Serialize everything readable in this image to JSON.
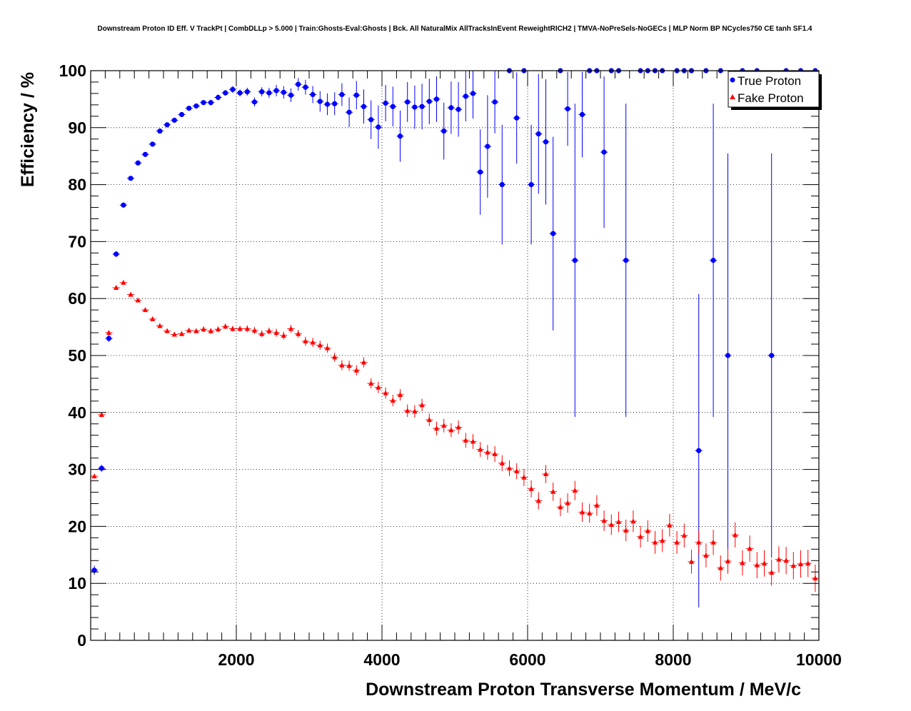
{
  "chart_data": {
    "type": "scatter",
    "title": "Downstream Proton ID Eff. V TrackPt | CombDLLp > 5.000 | Train:Ghosts-Eval:Ghosts | Bck. All NaturalMix AllTracksInEvent ReweightRICH2 | TMVA-NoPreSels-NoGECs | MLP Norm BP NCycles750 CE tanh SF1.4",
    "xlabel": "Downstream Proton Transverse Momentum / MeV/c",
    "ylabel": "Efficiency / %",
    "xlim": [
      0,
      10000
    ],
    "ylim": [
      0,
      100
    ],
    "xticks": [
      2000,
      4000,
      6000,
      8000,
      10000
    ],
    "yticks": [
      0,
      10,
      20,
      30,
      40,
      50,
      60,
      70,
      80,
      90,
      100
    ],
    "grid": true,
    "legend_position": "top-right",
    "colors": {
      "true_proton": "#0000ff",
      "fake_proton": "#ff0000"
    },
    "series": [
      {
        "name": "True Proton",
        "marker": "circle",
        "color": "#0000ff",
        "points": [
          [
            50,
            12.3,
            0.8
          ],
          [
            150,
            30.2,
            0.6
          ],
          [
            250,
            53.0,
            0.6
          ],
          [
            350,
            67.8,
            0.5
          ],
          [
            450,
            76.4,
            0.4
          ],
          [
            550,
            81.1,
            0.4
          ],
          [
            650,
            83.8,
            0.4
          ],
          [
            750,
            85.3,
            0.4
          ],
          [
            850,
            87.1,
            0.4
          ],
          [
            950,
            89.4,
            0.4
          ],
          [
            1050,
            90.5,
            0.4
          ],
          [
            1150,
            91.3,
            0.4
          ],
          [
            1250,
            92.3,
            0.4
          ],
          [
            1350,
            93.4,
            0.4
          ],
          [
            1450,
            93.8,
            0.4
          ],
          [
            1550,
            94.4,
            0.4
          ],
          [
            1650,
            94.4,
            0.5
          ],
          [
            1750,
            95.3,
            0.5
          ],
          [
            1850,
            96.1,
            0.5
          ],
          [
            1950,
            96.7,
            0.6
          ],
          [
            2050,
            96.1,
            0.6
          ],
          [
            2150,
            96.3,
            0.7
          ],
          [
            2250,
            94.5,
            0.8
          ],
          [
            2350,
            96.3,
            0.8
          ],
          [
            2450,
            96.1,
            0.9
          ],
          [
            2550,
            96.5,
            1.0
          ],
          [
            2650,
            96.2,
            1.1
          ],
          [
            2750,
            95.7,
            1.2
          ],
          [
            2850,
            97.6,
            1.1
          ],
          [
            2950,
            97.1,
            1.3
          ],
          [
            3050,
            95.8,
            1.5
          ],
          [
            3150,
            94.6,
            1.8
          ],
          [
            3250,
            94.1,
            1.9
          ],
          [
            3350,
            94.2,
            2.0
          ],
          [
            3450,
            95.8,
            2.0
          ],
          [
            3550,
            92.7,
            2.6
          ],
          [
            3650,
            95.7,
            2.5
          ],
          [
            3750,
            93.7,
            3.0
          ],
          [
            3850,
            91.4,
            3.4
          ],
          [
            3950,
            90.1,
            3.8
          ],
          [
            4050,
            94.3,
            3.2
          ],
          [
            4150,
            93.7,
            3.5
          ],
          [
            4250,
            88.5,
            4.5
          ],
          [
            4350,
            94.5,
            3.5
          ],
          [
            4450,
            93.6,
            3.8
          ],
          [
            4550,
            93.7,
            4.0
          ],
          [
            4650,
            94.6,
            4.0
          ],
          [
            4750,
            95.0,
            4.0
          ],
          [
            4850,
            89.4,
            5.0
          ],
          [
            4950,
            93.5,
            4.6
          ],
          [
            5050,
            93.2,
            4.8
          ],
          [
            5150,
            95.5,
            4.4
          ],
          [
            5250,
            96.0,
            4.4
          ],
          [
            5350,
            82.2,
            7.5
          ],
          [
            5450,
            86.7,
            9.0
          ],
          [
            5550,
            94.5,
            5.5
          ],
          [
            5650,
            80.0,
            10.5
          ],
          [
            5750,
            100,
            0
          ],
          [
            5850,
            91.7,
            8.0
          ],
          [
            5950,
            100,
            0
          ],
          [
            6050,
            80.0,
            10.5
          ],
          [
            6150,
            88.9,
            10.5
          ],
          [
            6250,
            87.5,
            11.0
          ],
          [
            6350,
            71.4,
            17.0
          ],
          [
            6450,
            100,
            0
          ],
          [
            6550,
            93.3,
            6.5
          ],
          [
            6650,
            66.7,
            27.5
          ],
          [
            6750,
            92.3,
            7.5
          ],
          [
            6850,
            100,
            0
          ],
          [
            6950,
            100,
            0
          ],
          [
            7050,
            85.7,
            13.3
          ],
          [
            7150,
            100,
            0
          ],
          [
            7250,
            100,
            0
          ],
          [
            7350,
            66.7,
            27.5
          ],
          [
            7550,
            100,
            0
          ],
          [
            7650,
            100,
            0
          ],
          [
            7750,
            100,
            0
          ],
          [
            7850,
            100,
            0
          ],
          [
            8050,
            100,
            0
          ],
          [
            8150,
            100,
            0
          ],
          [
            8250,
            100,
            0
          ],
          [
            8350,
            33.3,
            27.5
          ],
          [
            8450,
            100,
            0
          ],
          [
            8550,
            66.7,
            27.5
          ],
          [
            8650,
            100,
            0
          ],
          [
            8750,
            50.0,
            35.5
          ],
          [
            8950,
            100,
            0
          ],
          [
            9150,
            100,
            0
          ],
          [
            9350,
            50.0,
            35.5
          ],
          [
            9550,
            100,
            0
          ],
          [
            9750,
            100,
            0
          ],
          [
            9950,
            100,
            0
          ]
        ]
      },
      {
        "name": "Fake Proton",
        "marker": "triangle",
        "color": "#ff0000",
        "points": [
          [
            50,
            28.8,
            0.3
          ],
          [
            150,
            39.6,
            0.3
          ],
          [
            250,
            54.0,
            0.3
          ],
          [
            350,
            61.9,
            0.3
          ],
          [
            450,
            62.8,
            0.3
          ],
          [
            550,
            60.7,
            0.3
          ],
          [
            650,
            59.7,
            0.3
          ],
          [
            750,
            58.0,
            0.3
          ],
          [
            850,
            56.4,
            0.3
          ],
          [
            950,
            55.2,
            0.4
          ],
          [
            1050,
            54.3,
            0.4
          ],
          [
            1150,
            53.7,
            0.4
          ],
          [
            1250,
            53.8,
            0.4
          ],
          [
            1350,
            54.4,
            0.4
          ],
          [
            1450,
            54.3,
            0.4
          ],
          [
            1550,
            54.6,
            0.5
          ],
          [
            1650,
            54.3,
            0.5
          ],
          [
            1750,
            54.6,
            0.5
          ],
          [
            1850,
            55.1,
            0.5
          ],
          [
            1950,
            54.7,
            0.5
          ],
          [
            2050,
            54.7,
            0.5
          ],
          [
            2150,
            54.7,
            0.6
          ],
          [
            2250,
            54.4,
            0.6
          ],
          [
            2350,
            53.8,
            0.6
          ],
          [
            2450,
            54.3,
            0.6
          ],
          [
            2550,
            54.0,
            0.7
          ],
          [
            2650,
            53.5,
            0.7
          ],
          [
            2750,
            54.7,
            0.7
          ],
          [
            2850,
            53.8,
            0.7
          ],
          [
            2950,
            52.5,
            0.8
          ],
          [
            3050,
            52.3,
            0.8
          ],
          [
            3150,
            51.8,
            0.8
          ],
          [
            3250,
            51.3,
            0.8
          ],
          [
            3350,
            49.7,
            0.8
          ],
          [
            3450,
            48.3,
            0.9
          ],
          [
            3550,
            48.2,
            0.9
          ],
          [
            3650,
            47.4,
            0.9
          ],
          [
            3750,
            48.8,
            0.9
          ],
          [
            3850,
            45.1,
            0.9
          ],
          [
            3950,
            44.4,
            1.0
          ],
          [
            4050,
            43.4,
            1.0
          ],
          [
            4150,
            42.1,
            1.0
          ],
          [
            4250,
            43.1,
            1.0
          ],
          [
            4350,
            40.3,
            1.1
          ],
          [
            4450,
            40.2,
            1.1
          ],
          [
            4550,
            41.3,
            1.1
          ],
          [
            4650,
            38.7,
            1.1
          ],
          [
            4750,
            37.2,
            1.2
          ],
          [
            4850,
            37.7,
            1.2
          ],
          [
            4950,
            36.9,
            1.2
          ],
          [
            5050,
            37.4,
            1.2
          ],
          [
            5150,
            35.1,
            1.3
          ],
          [
            5250,
            34.9,
            1.3
          ],
          [
            5350,
            33.5,
            1.3
          ],
          [
            5450,
            33.0,
            1.3
          ],
          [
            5550,
            32.7,
            1.4
          ],
          [
            5650,
            31.1,
            1.4
          ],
          [
            5750,
            30.2,
            1.4
          ],
          [
            5850,
            29.7,
            1.4
          ],
          [
            5950,
            28.6,
            1.5
          ],
          [
            6050,
            26.6,
            1.5
          ],
          [
            6150,
            24.5,
            1.5
          ],
          [
            6250,
            29.2,
            1.6
          ],
          [
            6350,
            26.1,
            1.6
          ],
          [
            6450,
            23.4,
            1.6
          ],
          [
            6550,
            24.1,
            1.7
          ],
          [
            6650,
            26.3,
            1.7
          ],
          [
            6750,
            22.5,
            1.7
          ],
          [
            6850,
            22.3,
            1.7
          ],
          [
            6950,
            23.7,
            1.8
          ],
          [
            7050,
            21.0,
            1.8
          ],
          [
            7150,
            20.3,
            1.8
          ],
          [
            7250,
            20.8,
            1.8
          ],
          [
            7350,
            19.3,
            1.9
          ],
          [
            7450,
            20.9,
            1.9
          ],
          [
            7550,
            18.2,
            1.9
          ],
          [
            7650,
            19.2,
            1.9
          ],
          [
            7750,
            17.2,
            2.0
          ],
          [
            7850,
            17.5,
            2.0
          ],
          [
            7950,
            20.2,
            2.0
          ],
          [
            8050,
            17.2,
            2.0
          ],
          [
            8150,
            18.4,
            2.1
          ],
          [
            8250,
            13.8,
            2.1
          ],
          [
            8350,
            17.2,
            2.1
          ],
          [
            8450,
            14.9,
            2.1
          ],
          [
            8550,
            17.2,
            2.2
          ],
          [
            8650,
            12.7,
            2.2
          ],
          [
            8750,
            13.9,
            2.2
          ],
          [
            8850,
            18.5,
            2.2
          ],
          [
            8950,
            13.6,
            2.2
          ],
          [
            9050,
            16.1,
            2.3
          ],
          [
            9150,
            13.2,
            2.3
          ],
          [
            9250,
            13.5,
            2.3
          ],
          [
            9350,
            11.9,
            2.3
          ],
          [
            9450,
            14.2,
            2.3
          ],
          [
            9550,
            14.0,
            2.4
          ],
          [
            9650,
            13.1,
            2.4
          ],
          [
            9750,
            13.4,
            2.4
          ],
          [
            9850,
            13.5,
            2.4
          ],
          [
            9950,
            10.9,
            2.4
          ]
        ]
      }
    ]
  }
}
